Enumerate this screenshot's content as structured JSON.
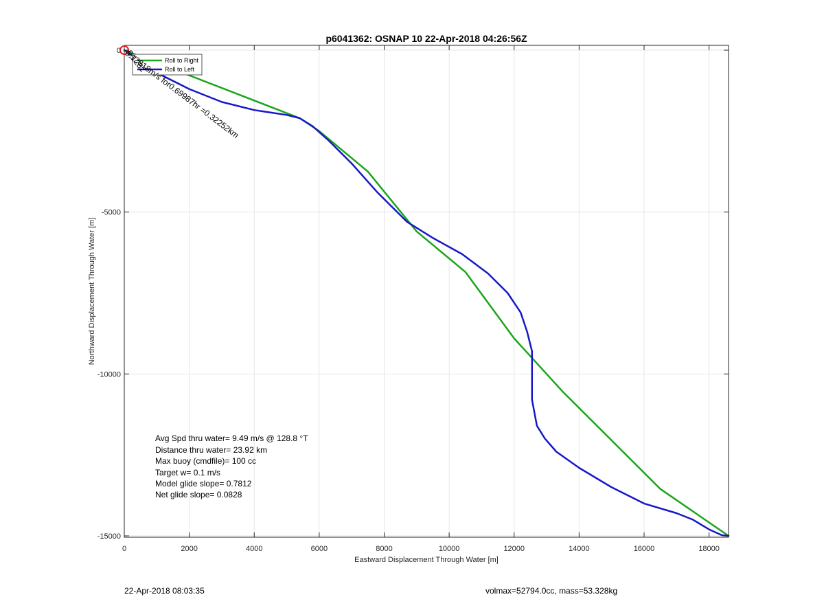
{
  "chart_data": {
    "type": "line",
    "title": "p6041362: OSNAP 10 22-Apr-2018 04:26:56Z",
    "xlabel": "Eastward Displacement Through Water [m]",
    "ylabel": "Northward Displacement Through Water [m]",
    "xlim": [
      0,
      18600
    ],
    "ylim": [
      -15000,
      0
    ],
    "xticks": [
      0,
      2000,
      4000,
      6000,
      8000,
      10000,
      12000,
      14000,
      16000,
      18000
    ],
    "yticks": [
      0,
      -5000,
      -10000,
      -15000
    ],
    "grid": true,
    "legend_position": "top-left",
    "series": [
      {
        "name": "Roll to Right",
        "color": "#1aa51a",
        "x": [
          0,
          5400,
          6000,
          7500,
          9000,
          10500,
          12000,
          13500,
          15000,
          16500,
          18600
        ],
        "y": [
          0,
          -2100,
          -2500,
          -3750,
          -5600,
          -6850,
          -8900,
          -10550,
          -12050,
          -13550,
          -15000
        ]
      },
      {
        "name": "Roll to Left",
        "color": "#1717c9",
        "x": [
          0,
          1000,
          2000,
          3000,
          4000,
          5000,
          5400,
          5800,
          6300,
          7000,
          7800,
          8700,
          9500,
          10400,
          11200,
          11800,
          12200,
          12400,
          12550,
          12550,
          12550,
          12700,
          12950,
          13300,
          14000,
          15000,
          16000,
          17000,
          17500,
          18000,
          18400,
          18600
        ],
        "y": [
          0,
          -700,
          -1200,
          -1600,
          -1850,
          -2000,
          -2100,
          -2350,
          -2800,
          -3500,
          -4400,
          -5300,
          -5800,
          -6300,
          -6900,
          -7500,
          -8100,
          -8700,
          -9300,
          -10000,
          -10800,
          -11600,
          -12000,
          -12400,
          -12900,
          -13500,
          -14000,
          -14300,
          -14500,
          -14800,
          -14980,
          -15000
        ]
      }
    ],
    "annotations": [
      "Avg Spd thru water=  9.49 m/s @ 128.8 °T",
      "Distance thru water= 23.92 km",
      "Max buoy (cmdfile)= 100 cc",
      "Target w= 0.1 m/s",
      "Model glide slope= 0.7812",
      "Net glide slope= 0.0828"
    ],
    "rotated_label": "0.12818m/s for0.69987hr =0.32252km",
    "overlap_label": "0.1282",
    "start_marker_color": "#e02020"
  },
  "footer": {
    "left": "22-Apr-2018 08:03:35",
    "right": "volmax=52794.0cc, mass=53.328kg"
  }
}
